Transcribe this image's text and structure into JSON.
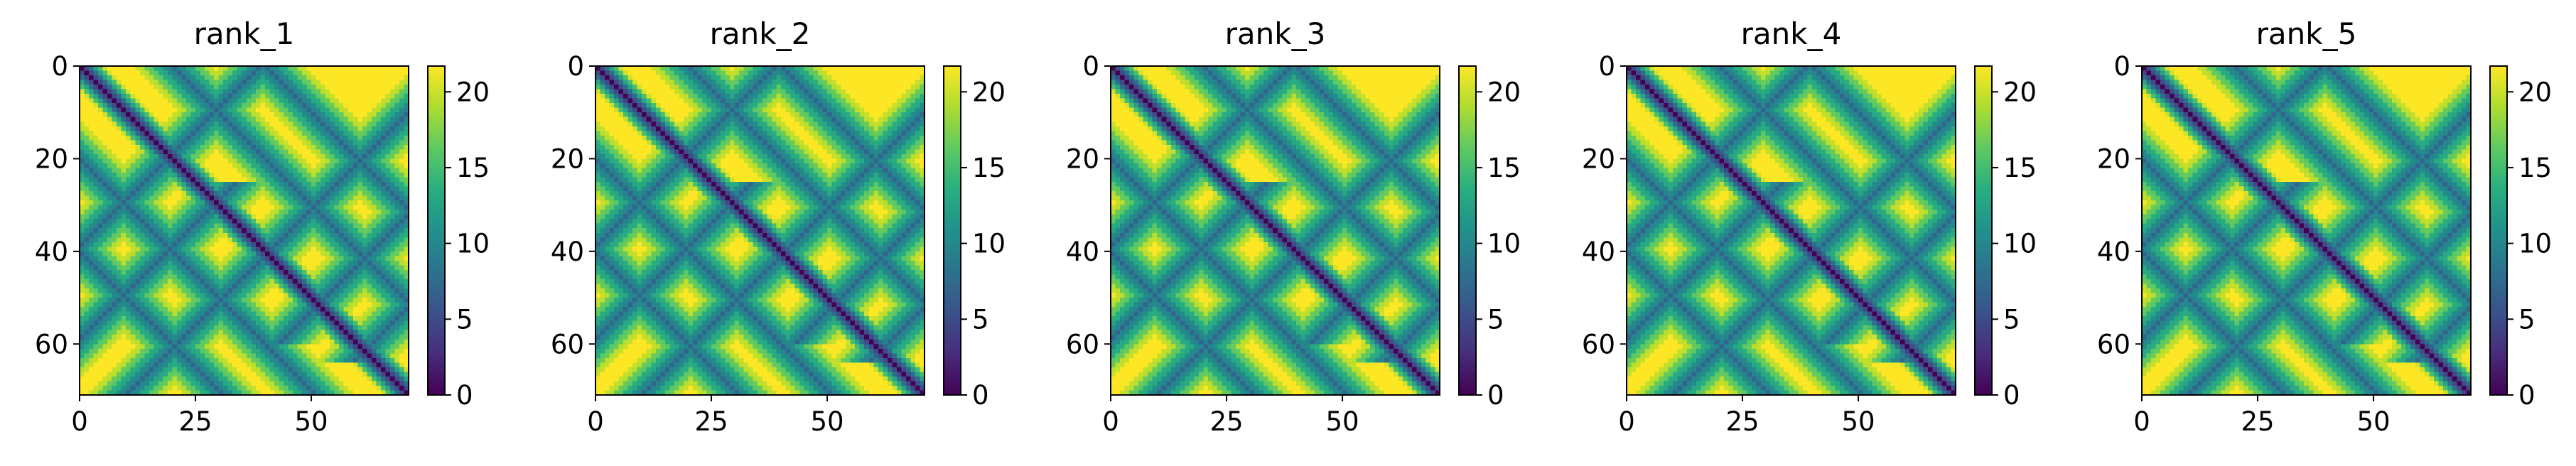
{
  "chart_data": [
    {
      "type": "heatmap",
      "title": "rank_1",
      "xticks": [
        0,
        25,
        50
      ],
      "yticks": [
        0,
        20,
        40,
        60
      ],
      "cbar_ticks": [
        0,
        5,
        10,
        15,
        20
      ],
      "size": 71,
      "vmin": 0,
      "vmax": 21.7,
      "colormap": "viridis",
      "grid": false
    },
    {
      "type": "heatmap",
      "title": "rank_2",
      "xticks": [
        0,
        25,
        50
      ],
      "yticks": [
        0,
        20,
        40,
        60
      ],
      "cbar_ticks": [
        0,
        5,
        10,
        15,
        20
      ],
      "size": 71,
      "vmin": 0,
      "vmax": 21.7,
      "colormap": "viridis",
      "grid": false
    },
    {
      "type": "heatmap",
      "title": "rank_3",
      "xticks": [
        0,
        25,
        50
      ],
      "yticks": [
        0,
        20,
        40,
        60
      ],
      "cbar_ticks": [
        0,
        5,
        10,
        15,
        20
      ],
      "size": 71,
      "vmin": 0,
      "vmax": 21.7,
      "colormap": "viridis",
      "grid": false
    },
    {
      "type": "heatmap",
      "title": "rank_4",
      "xticks": [
        0,
        25,
        50
      ],
      "yticks": [
        0,
        20,
        40,
        60
      ],
      "cbar_ticks": [
        0,
        5,
        10,
        15,
        20
      ],
      "size": 71,
      "vmin": 0,
      "vmax": 21.7,
      "colormap": "viridis",
      "grid": false
    },
    {
      "type": "heatmap",
      "title": "rank_5",
      "xticks": [
        0,
        25,
        50
      ],
      "yticks": [
        0,
        20,
        40,
        60
      ],
      "cbar_ticks": [
        0,
        5,
        10,
        15,
        20
      ],
      "size": 71,
      "vmin": 0,
      "vmax": 21.7,
      "colormap": "viridis",
      "grid": false
    }
  ]
}
